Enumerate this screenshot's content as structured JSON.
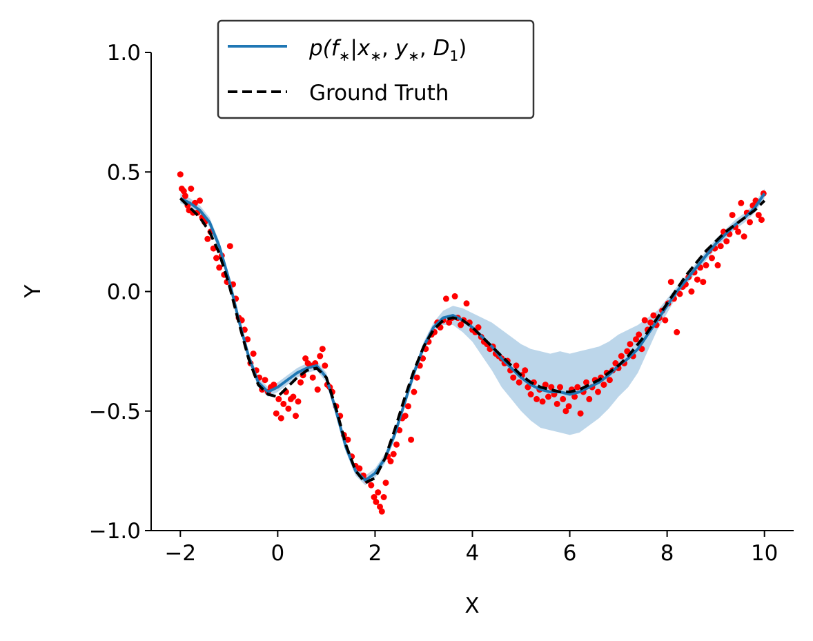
{
  "chart_data": {
    "type": "line",
    "title": "",
    "xlabel": "X",
    "ylabel": "Y",
    "xlim": [
      -2.6,
      10.6
    ],
    "ylim": [
      -1.0,
      1.0
    ],
    "xticks": [
      -2,
      0,
      2,
      4,
      6,
      8,
      10
    ],
    "yticks": [
      -1.0,
      -0.5,
      0.0,
      0.5,
      1.0
    ],
    "xtick_labels": [
      "−2",
      "0",
      "2",
      "4",
      "6",
      "8",
      "10"
    ],
    "ytick_labels": [
      "−1.0",
      "−0.5",
      "0.0",
      "0.5",
      "1.0"
    ],
    "grid": false,
    "spines": "left-bottom",
    "legend": {
      "position": "top-left",
      "entries": [
        {
          "label": "p(f*|x*, y*, D1)",
          "math": {
            "p": "p(",
            "f": "f",
            "star1": "∗",
            "bar": "|",
            "x": "x",
            "star2": "∗",
            "comma1": ", ",
            "y": "y",
            "star3": "∗",
            "comma2": ", ",
            "D": "D",
            "sub": "1",
            "close": ")"
          },
          "style": "solid",
          "color": "#1f77b4"
        },
        {
          "label": "Ground Truth",
          "style": "dashed",
          "color": "#000000"
        }
      ]
    },
    "series": [
      {
        "name": "p(f*|x*, y*, D1)",
        "kind": "predictive-mean-with-band",
        "color": "#1f77b4",
        "band_color": "#a6c8e3",
        "x": [
          -2.0,
          -1.8,
          -1.6,
          -1.4,
          -1.2,
          -1.0,
          -0.8,
          -0.6,
          -0.4,
          -0.2,
          0.0,
          0.2,
          0.4,
          0.6,
          0.8,
          1.0,
          1.2,
          1.4,
          1.6,
          1.8,
          2.0,
          2.2,
          2.4,
          2.6,
          2.8,
          3.0,
          3.2,
          3.4,
          3.6,
          3.8,
          4.0,
          4.2,
          4.4,
          4.6,
          4.8,
          5.0,
          5.2,
          5.4,
          5.6,
          5.8,
          6.0,
          6.2,
          6.4,
          6.6,
          6.8,
          7.0,
          7.2,
          7.4,
          7.6,
          7.8,
          8.0,
          8.2,
          8.4,
          8.6,
          8.8,
          9.0,
          9.2,
          9.4,
          9.6,
          9.8,
          10.0
        ],
        "y": [
          0.39,
          0.37,
          0.34,
          0.29,
          0.19,
          0.05,
          -0.12,
          -0.27,
          -0.38,
          -0.42,
          -0.4,
          -0.37,
          -0.34,
          -0.32,
          -0.31,
          -0.36,
          -0.5,
          -0.65,
          -0.75,
          -0.79,
          -0.76,
          -0.7,
          -0.6,
          -0.47,
          -0.34,
          -0.23,
          -0.15,
          -0.11,
          -0.1,
          -0.12,
          -0.15,
          -0.19,
          -0.23,
          -0.28,
          -0.32,
          -0.36,
          -0.39,
          -0.41,
          -0.42,
          -0.42,
          -0.43,
          -0.42,
          -0.4,
          -0.38,
          -0.35,
          -0.31,
          -0.28,
          -0.24,
          -0.18,
          -0.12,
          -0.06,
          0.0,
          0.05,
          0.1,
          0.15,
          0.2,
          0.24,
          0.28,
          0.31,
          0.35,
          0.41
        ],
        "band_halfwidth": [
          0.02,
          0.02,
          0.02,
          0.02,
          0.02,
          0.02,
          0.02,
          0.02,
          0.02,
          0.02,
          0.02,
          0.02,
          0.02,
          0.02,
          0.02,
          0.02,
          0.02,
          0.02,
          0.02,
          0.02,
          0.02,
          0.02,
          0.02,
          0.02,
          0.02,
          0.02,
          0.02,
          0.03,
          0.04,
          0.05,
          0.06,
          0.08,
          0.1,
          0.12,
          0.13,
          0.14,
          0.15,
          0.16,
          0.16,
          0.17,
          0.17,
          0.17,
          0.16,
          0.15,
          0.14,
          0.13,
          0.12,
          0.1,
          0.07,
          0.04,
          0.03,
          0.02,
          0.02,
          0.02,
          0.02,
          0.02,
          0.02,
          0.02,
          0.02,
          0.02,
          0.02
        ]
      },
      {
        "name": "Ground Truth",
        "kind": "line",
        "color": "#000000",
        "dash": "dashed",
        "x": [
          -2.0,
          -1.8,
          -1.6,
          -1.4,
          -1.2,
          -1.0,
          -0.8,
          -0.6,
          -0.4,
          -0.2,
          0.0,
          0.2,
          0.4,
          0.6,
          0.8,
          1.0,
          1.2,
          1.4,
          1.6,
          1.8,
          2.0,
          2.2,
          2.4,
          2.6,
          2.8,
          3.0,
          3.2,
          3.4,
          3.6,
          3.8,
          4.0,
          4.2,
          4.4,
          4.6,
          4.8,
          5.0,
          5.2,
          5.4,
          5.6,
          5.8,
          6.0,
          6.2,
          6.4,
          6.6,
          6.8,
          7.0,
          7.2,
          7.4,
          7.6,
          7.8,
          8.0,
          8.2,
          8.4,
          8.6,
          8.8,
          9.0,
          9.2,
          9.4,
          9.6,
          9.8,
          10.0
        ],
        "y": [
          0.39,
          0.35,
          0.31,
          0.25,
          0.16,
          0.03,
          -0.13,
          -0.28,
          -0.39,
          -0.43,
          -0.44,
          -0.4,
          -0.36,
          -0.33,
          -0.32,
          -0.36,
          -0.49,
          -0.64,
          -0.75,
          -0.8,
          -0.78,
          -0.7,
          -0.58,
          -0.45,
          -0.33,
          -0.23,
          -0.16,
          -0.12,
          -0.11,
          -0.12,
          -0.15,
          -0.19,
          -0.23,
          -0.27,
          -0.31,
          -0.35,
          -0.38,
          -0.4,
          -0.41,
          -0.42,
          -0.42,
          -0.41,
          -0.39,
          -0.37,
          -0.34,
          -0.31,
          -0.27,
          -0.22,
          -0.17,
          -0.11,
          -0.05,
          0.01,
          0.07,
          0.12,
          0.17,
          0.21,
          0.25,
          0.28,
          0.31,
          0.34,
          0.38
        ]
      },
      {
        "name": "",
        "kind": "scatter",
        "color": "#ff0000",
        "points": [
          [
            -2.0,
            0.49
          ],
          [
            -1.97,
            0.43
          ],
          [
            -1.93,
            0.42
          ],
          [
            -1.9,
            0.4
          ],
          [
            -1.85,
            0.36
          ],
          [
            -1.82,
            0.34
          ],
          [
            -1.78,
            0.43
          ],
          [
            -1.74,
            0.33
          ],
          [
            -1.7,
            0.37
          ],
          [
            -1.65,
            0.33
          ],
          [
            -1.6,
            0.38
          ],
          [
            -1.55,
            0.31
          ],
          [
            -1.5,
            0.29
          ],
          [
            -1.44,
            0.22
          ],
          [
            -1.38,
            0.25
          ],
          [
            -1.32,
            0.18
          ],
          [
            -1.26,
            0.14
          ],
          [
            -1.2,
            0.1
          ],
          [
            -1.15,
            0.15
          ],
          [
            -1.1,
            0.07
          ],
          [
            -1.04,
            0.04
          ],
          [
            -0.98,
            0.19
          ],
          [
            -0.92,
            0.03
          ],
          [
            -0.86,
            -0.03
          ],
          [
            -0.8,
            -0.11
          ],
          [
            -0.74,
            -0.12
          ],
          [
            -0.68,
            -0.16
          ],
          [
            -0.62,
            -0.2
          ],
          [
            -0.56,
            -0.3
          ],
          [
            -0.5,
            -0.26
          ],
          [
            -0.44,
            -0.33
          ],
          [
            -0.38,
            -0.36
          ],
          [
            -0.32,
            -0.41
          ],
          [
            -0.26,
            -0.37
          ],
          [
            -0.2,
            -0.42
          ],
          [
            -0.14,
            -0.4
          ],
          [
            -0.08,
            -0.39
          ],
          [
            -0.03,
            -0.51
          ],
          [
            0.02,
            -0.45
          ],
          [
            0.07,
            -0.53
          ],
          [
            0.12,
            -0.47
          ],
          [
            0.17,
            -0.42
          ],
          [
            0.22,
            -0.49
          ],
          [
            0.27,
            -0.45
          ],
          [
            0.32,
            -0.44
          ],
          [
            0.37,
            -0.52
          ],
          [
            0.42,
            -0.46
          ],
          [
            0.47,
            -0.38
          ],
          [
            0.52,
            -0.35
          ],
          [
            0.57,
            -0.28
          ],
          [
            0.62,
            -0.3
          ],
          [
            0.67,
            -0.31
          ],
          [
            0.72,
            -0.36
          ],
          [
            0.77,
            -0.3
          ],
          [
            0.82,
            -0.41
          ],
          [
            0.87,
            -0.27
          ],
          [
            0.92,
            -0.24
          ],
          [
            0.97,
            -0.31
          ],
          [
            1.02,
            -0.39
          ],
          [
            1.07,
            -0.4
          ],
          [
            1.12,
            -0.42
          ],
          [
            1.2,
            -0.48
          ],
          [
            1.28,
            -0.52
          ],
          [
            1.36,
            -0.6
          ],
          [
            1.44,
            -0.62
          ],
          [
            1.52,
            -0.69
          ],
          [
            1.6,
            -0.73
          ],
          [
            1.68,
            -0.74
          ],
          [
            1.76,
            -0.77
          ],
          [
            1.84,
            -0.79
          ],
          [
            1.92,
            -0.81
          ],
          [
            1.98,
            -0.86
          ],
          [
            2.02,
            -0.88
          ],
          [
            2.06,
            -0.84
          ],
          [
            2.1,
            -0.9
          ],
          [
            2.14,
            -0.92
          ],
          [
            2.18,
            -0.86
          ],
          [
            2.22,
            -0.8
          ],
          [
            2.26,
            -0.69
          ],
          [
            2.32,
            -0.71
          ],
          [
            2.38,
            -0.68
          ],
          [
            2.44,
            -0.64
          ],
          [
            2.5,
            -0.58
          ],
          [
            2.56,
            -0.53
          ],
          [
            2.62,
            -0.52
          ],
          [
            2.68,
            -0.48
          ],
          [
            2.74,
            -0.62
          ],
          [
            2.8,
            -0.42
          ],
          [
            2.86,
            -0.36
          ],
          [
            2.92,
            -0.31
          ],
          [
            2.98,
            -0.28
          ],
          [
            3.04,
            -0.24
          ],
          [
            3.1,
            -0.21
          ],
          [
            3.16,
            -0.18
          ],
          [
            3.22,
            -0.17
          ],
          [
            3.28,
            -0.13
          ],
          [
            3.34,
            -0.15
          ],
          [
            3.4,
            -0.12
          ],
          [
            3.46,
            -0.03
          ],
          [
            3.52,
            -0.13
          ],
          [
            3.58,
            -0.11
          ],
          [
            3.64,
            -0.02
          ],
          [
            3.7,
            -0.11
          ],
          [
            3.76,
            -0.14
          ],
          [
            3.82,
            -0.12
          ],
          [
            3.88,
            -0.05
          ],
          [
            3.94,
            -0.13
          ],
          [
            4.0,
            -0.16
          ],
          [
            4.06,
            -0.17
          ],
          [
            4.12,
            -0.15
          ],
          [
            4.18,
            -0.19
          ],
          [
            4.24,
            -0.21
          ],
          [
            4.3,
            -0.22
          ],
          [
            4.36,
            -0.24
          ],
          [
            4.42,
            -0.23
          ],
          [
            4.48,
            -0.26
          ],
          [
            4.54,
            -0.27
          ],
          [
            4.6,
            -0.28
          ],
          [
            4.66,
            -0.3
          ],
          [
            4.72,
            -0.29
          ],
          [
            4.78,
            -0.33
          ],
          [
            4.84,
            -0.36
          ],
          [
            4.9,
            -0.31
          ],
          [
            4.96,
            -0.38
          ],
          [
            5.02,
            -0.35
          ],
          [
            5.08,
            -0.33
          ],
          [
            5.14,
            -0.4
          ],
          [
            5.2,
            -0.43
          ],
          [
            5.26,
            -0.38
          ],
          [
            5.32,
            -0.45
          ],
          [
            5.38,
            -0.41
          ],
          [
            5.44,
            -0.46
          ],
          [
            5.5,
            -0.39
          ],
          [
            5.56,
            -0.44
          ],
          [
            5.62,
            -0.4
          ],
          [
            5.68,
            -0.43
          ],
          [
            5.74,
            -0.47
          ],
          [
            5.8,
            -0.4
          ],
          [
            5.86,
            -0.45
          ],
          [
            5.92,
            -0.5
          ],
          [
            5.98,
            -0.48
          ],
          [
            6.04,
            -0.41
          ],
          [
            6.1,
            -0.44
          ],
          [
            6.16,
            -0.4
          ],
          [
            6.22,
            -0.51
          ],
          [
            6.28,
            -0.42
          ],
          [
            6.34,
            -0.38
          ],
          [
            6.4,
            -0.45
          ],
          [
            6.46,
            -0.4
          ],
          [
            6.52,
            -0.37
          ],
          [
            6.58,
            -0.42
          ],
          [
            6.64,
            -0.36
          ],
          [
            6.7,
            -0.39
          ],
          [
            6.76,
            -0.34
          ],
          [
            6.82,
            -0.37
          ],
          [
            6.88,
            -0.33
          ],
          [
            6.94,
            -0.3
          ],
          [
            7.0,
            -0.32
          ],
          [
            7.06,
            -0.27
          ],
          [
            7.12,
            -0.3
          ],
          [
            7.18,
            -0.25
          ],
          [
            7.24,
            -0.22
          ],
          [
            7.3,
            -0.27
          ],
          [
            7.36,
            -0.2
          ],
          [
            7.42,
            -0.18
          ],
          [
            7.48,
            -0.24
          ],
          [
            7.54,
            -0.12
          ],
          [
            7.6,
            -0.16
          ],
          [
            7.66,
            -0.13
          ],
          [
            7.72,
            -0.1
          ],
          [
            7.78,
            -0.14
          ],
          [
            7.84,
            -0.11
          ],
          [
            7.9,
            -0.08
          ],
          [
            7.96,
            -0.12
          ],
          [
            8.02,
            -0.05
          ],
          [
            8.08,
            0.04
          ],
          [
            8.14,
            -0.03
          ],
          [
            8.2,
            -0.17
          ],
          [
            8.26,
            -0.01
          ],
          [
            8.32,
            0.02
          ],
          [
            8.38,
            0.03
          ],
          [
            8.44,
            0.06
          ],
          [
            8.5,
            0.0
          ],
          [
            8.56,
            0.08
          ],
          [
            8.62,
            0.05
          ],
          [
            8.68,
            0.1
          ],
          [
            8.74,
            0.04
          ],
          [
            8.8,
            0.11
          ],
          [
            8.86,
            0.17
          ],
          [
            8.92,
            0.14
          ],
          [
            8.98,
            0.18
          ],
          [
            9.04,
            0.11
          ],
          [
            9.1,
            0.19
          ],
          [
            9.16,
            0.25
          ],
          [
            9.22,
            0.21
          ],
          [
            9.28,
            0.24
          ],
          [
            9.34,
            0.32
          ],
          [
            9.4,
            0.27
          ],
          [
            9.46,
            0.25
          ],
          [
            9.52,
            0.37
          ],
          [
            9.58,
            0.23
          ],
          [
            9.64,
            0.33
          ],
          [
            9.7,
            0.29
          ],
          [
            9.76,
            0.36
          ],
          [
            9.82,
            0.38
          ],
          [
            9.88,
            0.32
          ],
          [
            9.94,
            0.3
          ],
          [
            9.98,
            0.41
          ]
        ]
      }
    ]
  }
}
